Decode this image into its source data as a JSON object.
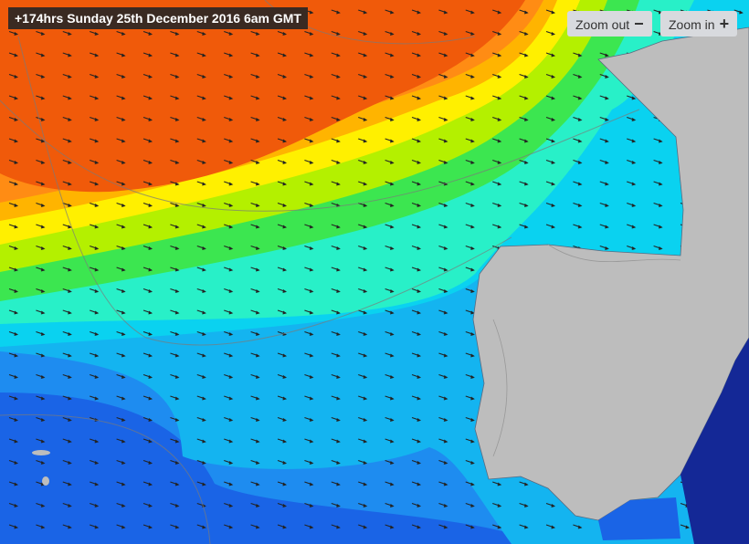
{
  "header": {
    "timestamp": "+174hrs Sunday 25th December 2016 6am GMT"
  },
  "controls": {
    "zoom_out": "Zoom out",
    "zoom_in": "Zoom in"
  }
}
